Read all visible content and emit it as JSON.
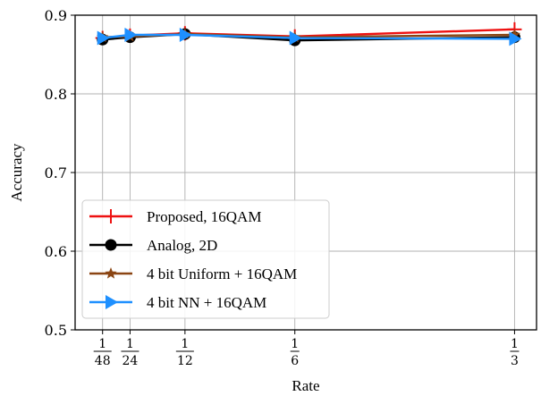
{
  "chart_data": {
    "type": "line",
    "title": "",
    "xlabel": "Rate",
    "ylabel": "Accuracy",
    "x": [
      0.020833,
      0.041667,
      0.083333,
      0.166667,
      0.333333
    ],
    "x_tick_labels": [
      {
        "num": "1",
        "den": "48"
      },
      {
        "num": "1",
        "den": "24"
      },
      {
        "num": "1",
        "den": "12"
      },
      {
        "num": "1",
        "den": "6"
      },
      {
        "num": "1",
        "den": "3"
      }
    ],
    "ylim": [
      0.5,
      0.9
    ],
    "y_ticks": [
      0.5,
      0.6,
      0.7,
      0.8,
      0.9
    ],
    "y_tick_labels": [
      "0.5",
      "0.6",
      "0.7",
      "0.8",
      "0.9"
    ],
    "grid": true,
    "legend_position": "lower-left",
    "series": [
      {
        "name": "Proposed, 16QAM",
        "color": "#ee1111",
        "marker": "plus",
        "values": [
          0.871,
          0.874,
          0.877,
          0.873,
          0.882
        ]
      },
      {
        "name": "Analog, 2D",
        "color": "#000000",
        "marker": "circle",
        "values": [
          0.869,
          0.872,
          0.876,
          0.868,
          0.872
        ]
      },
      {
        "name": "4 bit Uniform + 16QAM",
        "color": "#8b4513",
        "marker": "star",
        "values": [
          0.872,
          0.873,
          0.876,
          0.872,
          0.875
        ]
      },
      {
        "name": "4 bit NN + 16QAM",
        "color": "#1e90ff",
        "marker": "triangle-right",
        "values": [
          0.871,
          0.875,
          0.875,
          0.871,
          0.87
        ]
      }
    ]
  }
}
